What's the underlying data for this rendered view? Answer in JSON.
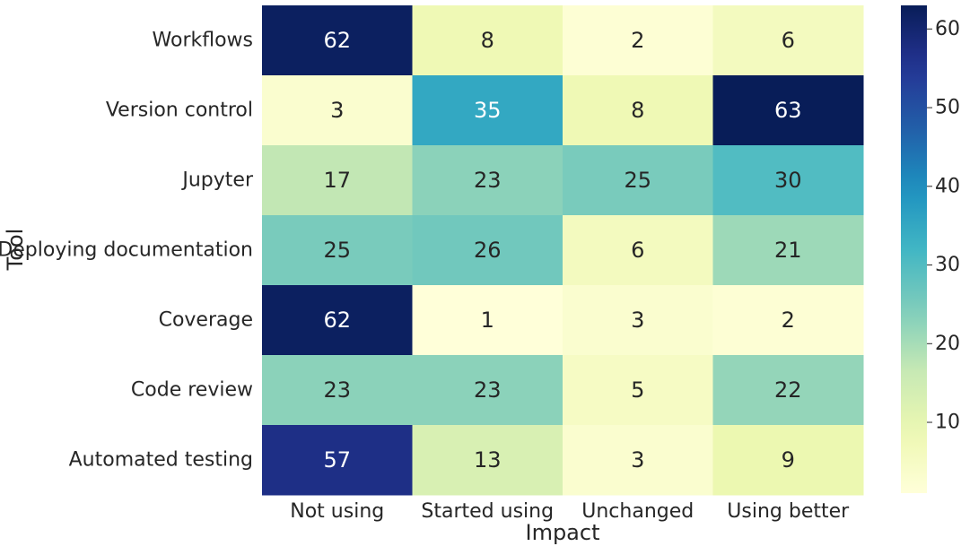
{
  "chart_data": {
    "type": "heatmap",
    "title": "",
    "xlabel": "Impact",
    "ylabel": "Tool",
    "columns": [
      "Not using",
      "Started using",
      "Unchanged",
      "Using better"
    ],
    "rows": [
      "Workflows",
      "Version control",
      "Jupyter",
      "Deploying documentation",
      "Coverage",
      "Code review",
      "Automated testing"
    ],
    "values": [
      [
        62,
        8,
        2,
        6
      ],
      [
        3,
        35,
        8,
        63
      ],
      [
        17,
        23,
        25,
        30
      ],
      [
        25,
        26,
        6,
        21
      ],
      [
        62,
        1,
        3,
        2
      ],
      [
        23,
        23,
        5,
        22
      ],
      [
        57,
        13,
        3,
        9
      ]
    ],
    "colormap": "YlGnBu",
    "vmin": 1,
    "vmax": 63,
    "colorbar_ticks": [
      10,
      20,
      30,
      40,
      50,
      60
    ],
    "grid": false
  }
}
